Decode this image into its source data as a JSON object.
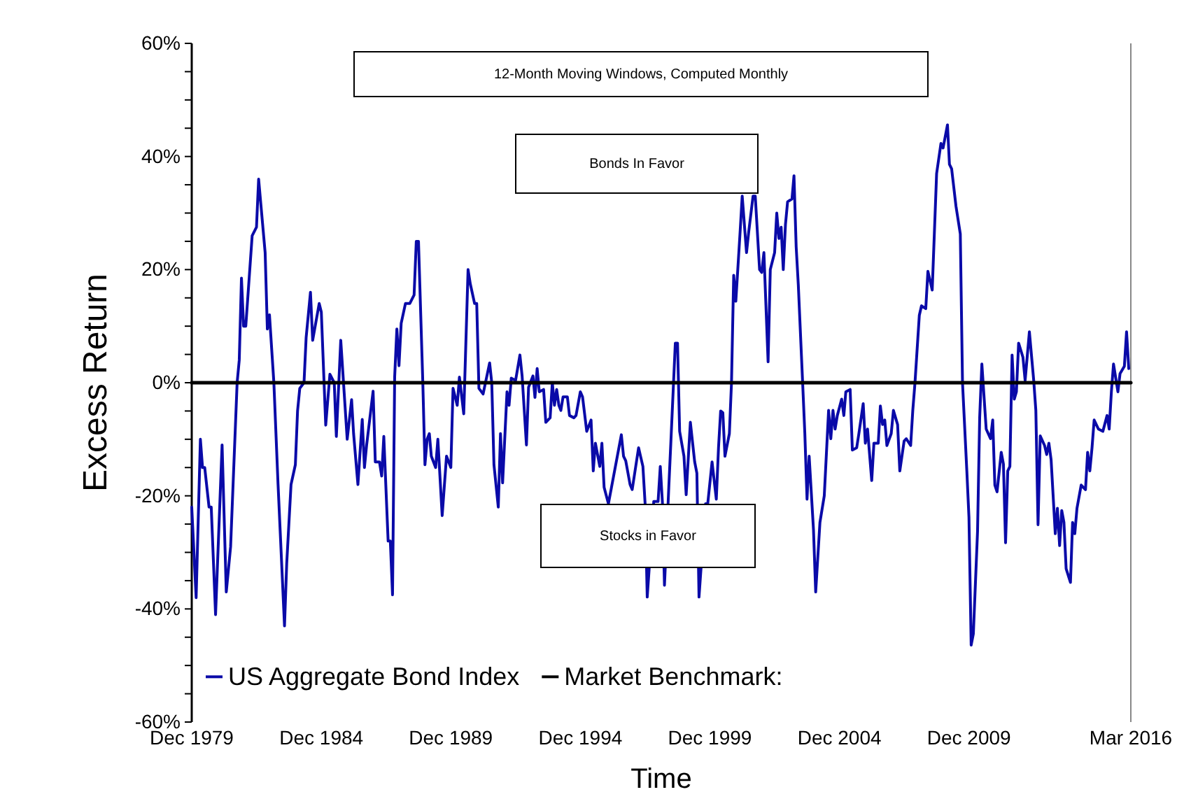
{
  "chart_data": {
    "type": "line",
    "title": "12-Month Moving Windows, Computed Monthly",
    "xlabel": "Time",
    "ylabel": "Excess Return",
    "annotations": [
      "Bonds In Favor",
      "Stocks in Favor"
    ],
    "xlim": [
      "1979-12",
      "2016-03"
    ],
    "xticks": [
      {
        "value": "1979-12",
        "label": "Dec 1979"
      },
      {
        "value": "1984-12",
        "label": "Dec 1984"
      },
      {
        "value": "1989-12",
        "label": "Dec 1989"
      },
      {
        "value": "1994-12",
        "label": "Dec 1994"
      },
      {
        "value": "1999-12",
        "label": "Dec 1999"
      },
      {
        "value": "2004-12",
        "label": "Dec 2004"
      },
      {
        "value": "2009-12",
        "label": "Dec 2009"
      },
      {
        "value": "2016-03",
        "label": "Mar 2016"
      }
    ],
    "ylim": [
      -60,
      60
    ],
    "yticks": [
      {
        "value": -60,
        "label": "-60%"
      },
      {
        "value": -55,
        "label": null
      },
      {
        "value": -50,
        "label": null
      },
      {
        "value": -45,
        "label": null
      },
      {
        "value": -40,
        "label": "-40%"
      },
      {
        "value": -35,
        "label": null
      },
      {
        "value": -30,
        "label": null
      },
      {
        "value": -25,
        "label": null
      },
      {
        "value": -20,
        "label": "-20%"
      },
      {
        "value": -15,
        "label": null
      },
      {
        "value": -10,
        "label": null
      },
      {
        "value": -5,
        "label": null
      },
      {
        "value": 0,
        "label": "0%"
      },
      {
        "value": 5,
        "label": null
      },
      {
        "value": 10,
        "label": null
      },
      {
        "value": 15,
        "label": null
      },
      {
        "value": 20,
        "label": "20%"
      },
      {
        "value": 25,
        "label": null
      },
      {
        "value": 30,
        "label": null
      },
      {
        "value": 35,
        "label": null
      },
      {
        "value": 40,
        "label": "40%"
      },
      {
        "value": 45,
        "label": null
      },
      {
        "value": 50,
        "label": null
      },
      {
        "value": 55,
        "label": null
      },
      {
        "value": 60,
        "label": "60%"
      }
    ],
    "legend": "bottom left",
    "series": [
      {
        "name": "US Aggregate Bond Index",
        "color": "#0a0aa8",
        "x": [
          "1979-12",
          "1980-02",
          "1980-04",
          "1980-05",
          "1980-06",
          "1980-08",
          "1980-09",
          "1980-11",
          "1981-02",
          "1981-04",
          "1981-06",
          "1981-09",
          "1981-10",
          "1981-11",
          "1981-12",
          "1982-01",
          "1982-03",
          "1982-04",
          "1982-06",
          "1982-07",
          "1982-10",
          "1982-11",
          "1982-12",
          "1983-02",
          "1983-04",
          "1983-07",
          "1983-08",
          "1983-10",
          "1983-12",
          "1984-01",
          "1984-02",
          "1984-04",
          "1984-05",
          "1984-07",
          "1984-08",
          "1984-11",
          "1984-12",
          "1985-02",
          "1985-04",
          "1985-06",
          "1985-07",
          "1985-09",
          "1985-12",
          "1986-02",
          "1986-03",
          "1986-05",
          "1986-07",
          "1986-08",
          "1986-09",
          "1986-12",
          "1987-01",
          "1987-03",
          "1987-04",
          "1987-05",
          "1987-07",
          "1987-08",
          "1987-09",
          "1987-10",
          "1987-11",
          "1987-12",
          "1988-01",
          "1988-03",
          "1988-05",
          "1988-07",
          "1988-08",
          "1988-09",
          "1988-11",
          "1988-12",
          "1989-01",
          "1989-02",
          "1989-03",
          "1989-05",
          "1989-06",
          "1989-08",
          "1989-10",
          "1989-12",
          "1990-01",
          "1990-03",
          "1990-04",
          "1990-06",
          "1990-08",
          "1990-09",
          "1990-11",
          "1990-12",
          "1991-01",
          "1991-03",
          "1991-06",
          "1991-07",
          "1991-08",
          "1991-10",
          "1991-11",
          "1991-12",
          "1992-02",
          "1992-03",
          "1992-04",
          "1992-06",
          "1992-08",
          "1992-09",
          "1992-11",
          "1992-12",
          "1993-02",
          "1993-03",
          "1993-04",
          "1993-05",
          "1993-07",
          "1993-08",
          "1993-10",
          "1993-11",
          "1993-12",
          "1994-01",
          "1994-02",
          "1994-03",
          "1994-04",
          "1994-06",
          "1994-07",
          "1994-09",
          "1994-10",
          "1994-12",
          "1995-01",
          "1995-03",
          "1995-05",
          "1995-06",
          "1995-07",
          "1995-09",
          "1995-10",
          "1995-11",
          "1996-01",
          "1996-07",
          "1996-08",
          "1996-09",
          "1996-11",
          "1996-12",
          "1997-03",
          "1997-05",
          "1997-06",
          "1997-07",
          "1997-10",
          "1997-12",
          "1998-01",
          "1998-02",
          "1998-03",
          "1998-05",
          "1998-06",
          "1998-08",
          "1998-09",
          "1998-10",
          "1998-12",
          "1999-01",
          "1999-03",
          "1999-05",
          "1999-06",
          "1999-07",
          "1999-10",
          "1999-11",
          "2000-01",
          "2000-03",
          "2000-04",
          "2000-05",
          "2000-06",
          "2000-07",
          "2000-09",
          "2000-10",
          "2000-11",
          "2000-12",
          "2001-02",
          "2001-03",
          "2001-05",
          "2001-06",
          "2001-08",
          "2001-09",
          "2001-11",
          "2001-12",
          "2002-01",
          "2002-03",
          "2002-04",
          "2002-06",
          "2002-07",
          "2002-08",
          "2002-09",
          "2002-10",
          "2002-11",
          "2002-12",
          "2003-02",
          "2003-03",
          "2003-04",
          "2003-05",
          "2003-07",
          "2003-08",
          "2003-09",
          "2003-10",
          "2003-12",
          "2004-01",
          "2004-03",
          "2004-05",
          "2004-07",
          "2004-08",
          "2004-09",
          "2004-10",
          "2004-11",
          "2005-01",
          "2005-02",
          "2005-03",
          "2005-05",
          "2005-06",
          "2005-08",
          "2005-09",
          "2005-11",
          "2005-12",
          "2006-01",
          "2006-03",
          "2006-04",
          "2006-06",
          "2006-07",
          "2006-08",
          "2006-09",
          "2006-10",
          "2006-12",
          "2007-01",
          "2007-03",
          "2007-04",
          "2007-06",
          "2007-07",
          "2007-09",
          "2007-10",
          "2007-11",
          "2008-01",
          "2008-02",
          "2008-04",
          "2008-05",
          "2008-07",
          "2008-09",
          "2008-11",
          "2008-12",
          "2009-02",
          "2009-03",
          "2009-04",
          "2009-06",
          "2009-08",
          "2009-09",
          "2009-11",
          "2009-12",
          "2010-01",
          "2010-02",
          "2010-04",
          "2010-05",
          "2010-06",
          "2010-08",
          "2010-10",
          "2010-11",
          "2010-12",
          "2011-01",
          "2011-03",
          "2011-04",
          "2011-05",
          "2011-06",
          "2011-07",
          "2011-08",
          "2011-09",
          "2011-10",
          "2011-11",
          "2012-01",
          "2012-02",
          "2012-04",
          "2012-06",
          "2012-07",
          "2012-08",
          "2012-09",
          "2012-11",
          "2012-12",
          "2013-01",
          "2013-02",
          "2013-04",
          "2013-05",
          "2013-06",
          "2013-07",
          "2013-08",
          "2013-09",
          "2013-11",
          "2013-12",
          "2014-01",
          "2014-02",
          "2014-04",
          "2014-06",
          "2014-07",
          "2014-08",
          "2014-09",
          "2014-10",
          "2014-12",
          "2015-02",
          "2015-04",
          "2015-05",
          "2015-06",
          "2015-07",
          "2015-09",
          "2015-10",
          "2015-12",
          "2016-01",
          "2016-02"
        ],
        "values": [
          -22,
          -38,
          -10,
          -15,
          -15,
          -22,
          -22,
          -41,
          -11,
          -37,
          -29,
          0,
          4,
          18.5,
          10,
          10,
          20.5,
          26,
          27.5,
          36,
          23,
          9.5,
          12,
          0,
          -18,
          -43,
          -32,
          -18,
          -14.5,
          -5,
          -1,
          0,
          8,
          16,
          7.5,
          14,
          12.5,
          -7.5,
          1.5,
          0,
          -9.5,
          7.5,
          -10,
          -3,
          -9,
          -18,
          -6.5,
          -15,
          -11,
          -1.5,
          -14,
          -14,
          -16.5,
          -9.5,
          -28,
          -28,
          -37.5,
          1,
          9.5,
          3,
          10.5,
          14,
          14,
          15.5,
          25,
          25,
          0,
          -14.5,
          -10,
          -9,
          -13,
          -15,
          -10,
          -23.5,
          -13,
          -15,
          -1,
          -4,
          1,
          -5.5,
          20,
          17.5,
          14,
          14,
          -1,
          -2,
          3.5,
          0,
          -14.5,
          -22,
          -9,
          -17.7,
          -1.6,
          -4,
          0.8,
          0.4,
          4.9,
          1.2,
          -11,
          -0.8,
          1.2,
          -2.6,
          2.5,
          -1.6,
          -1.2,
          -7,
          -6.2,
          0,
          -4,
          -1.2,
          -4,
          -4.9,
          -2.5,
          -2.5,
          -5.8,
          -6.2,
          -5.8,
          -1.6,
          -2.5,
          -8.6,
          -6.6,
          -15.6,
          -10.7,
          -14.8,
          -10.7,
          -18.5,
          -21.4,
          -9.2,
          -13,
          -13.8,
          -18,
          -18.9,
          -11.5,
          -14.8,
          -21.4,
          -37.9,
          -21,
          -21,
          -14.8,
          -21.4,
          -35.8,
          -18.5,
          -10,
          7,
          7,
          -8.6,
          -13,
          -19.8,
          -7,
          -14,
          -16,
          -37.9,
          -21.4,
          -21.4,
          -14,
          -20.6,
          -11.5,
          -5,
          -5.3,
          -13,
          -9,
          0,
          19,
          14.4,
          27,
          33,
          23,
          26.7,
          33,
          33,
          20,
          19.5,
          23,
          3.7,
          20,
          23,
          30,
          25.5,
          27.5,
          20,
          28,
          32,
          32.5,
          36.6,
          24,
          17.3,
          0,
          -9,
          -20.6,
          -13,
          -26,
          -37,
          -24.7,
          -20,
          -4.9,
          -9.9,
          -4.9,
          -8.2,
          -5.8,
          -2.9,
          -5.8,
          -1.6,
          -1.2,
          -11.9,
          -11.5,
          -9,
          -3.7,
          -10.7,
          -8.2,
          -17.3,
          -10.7,
          -10.7,
          -4.1,
          -7.4,
          -6.6,
          -11.1,
          -9,
          -4.9,
          -7.4,
          -15.6,
          -10.3,
          -9.9,
          -11.1,
          -4.9,
          0,
          11.9,
          13.6,
          13.1,
          19.7,
          16.4,
          37,
          42.3,
          41.5,
          45.6,
          38.6,
          37.8,
          31.2,
          26.3,
          0,
          -15.6,
          -23.8,
          -46.4,
          -44.4,
          -26.3,
          -6.2,
          3.3,
          -8.2,
          -9.9,
          -6.6,
          -18.1,
          -19.3,
          -12.3,
          -14.4,
          -28.3,
          -15.6,
          -14.8,
          4.9,
          -2.9,
          -1.6,
          7,
          4.5,
          0.4,
          9,
          0.4,
          -4.9,
          -25.1,
          -9.4,
          -11.1,
          -12.7,
          -10.7,
          -13.6,
          -26.7,
          -22.2,
          -28.8,
          -22.6,
          -24.7,
          -32.9,
          -35.3,
          -24.7,
          -26.7,
          -22.2,
          -18.1,
          -18.9,
          -12.3,
          -15.6,
          -11.5,
          -6.6,
          -8.2,
          -8.6,
          -5.8,
          -8.2,
          -1.6,
          3.3,
          -1.6,
          1.6,
          2.9,
          9,
          2.5
        ]
      },
      {
        "name": "Market Benchmark:",
        "color": "#000000",
        "x": [
          "1979-12",
          "2016-03"
        ],
        "values": [
          0,
          0
        ]
      }
    ]
  }
}
